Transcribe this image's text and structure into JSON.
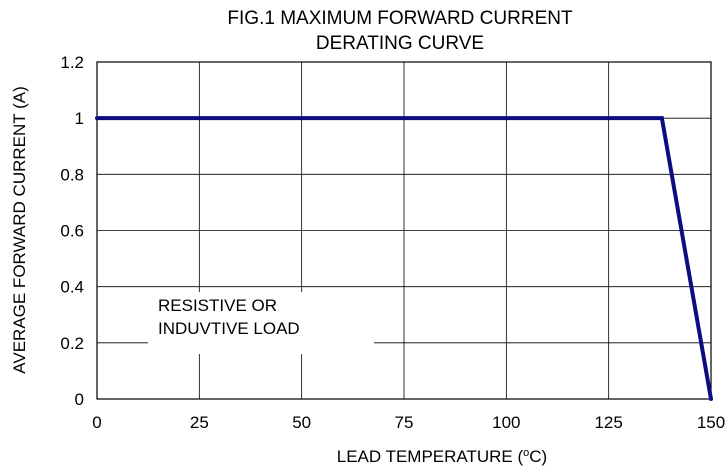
{
  "chart_data": {
    "type": "line",
    "title_lines": [
      "FIG.1 MAXIMUM FORWARD CURRENT",
      "DERATING CURVE"
    ],
    "xlabel_prefix": "LEAD TEMPERATURE (",
    "xlabel_sup": "o",
    "xlabel_suffix": "C)",
    "ylabel": "AVERAGE FORWARD CURRENT (A)",
    "xlim": [
      0,
      150
    ],
    "ylim": [
      0,
      1.2
    ],
    "x_ticks": [
      "0",
      "25",
      "50",
      "75",
      "100",
      "125",
      "150"
    ],
    "y_ticks": [
      "0",
      "0.2",
      "0.4",
      "0.6",
      "0.8",
      "1",
      "1.2"
    ],
    "grid": true,
    "series": [
      {
        "color": "#0d0d80",
        "points": [
          [
            0,
            1.0
          ],
          [
            138,
            1.0
          ],
          [
            150,
            0.0
          ]
        ]
      }
    ],
    "annotation_lines": [
      "RESISTIVE OR",
      "INDUVTIVE LOAD"
    ]
  }
}
